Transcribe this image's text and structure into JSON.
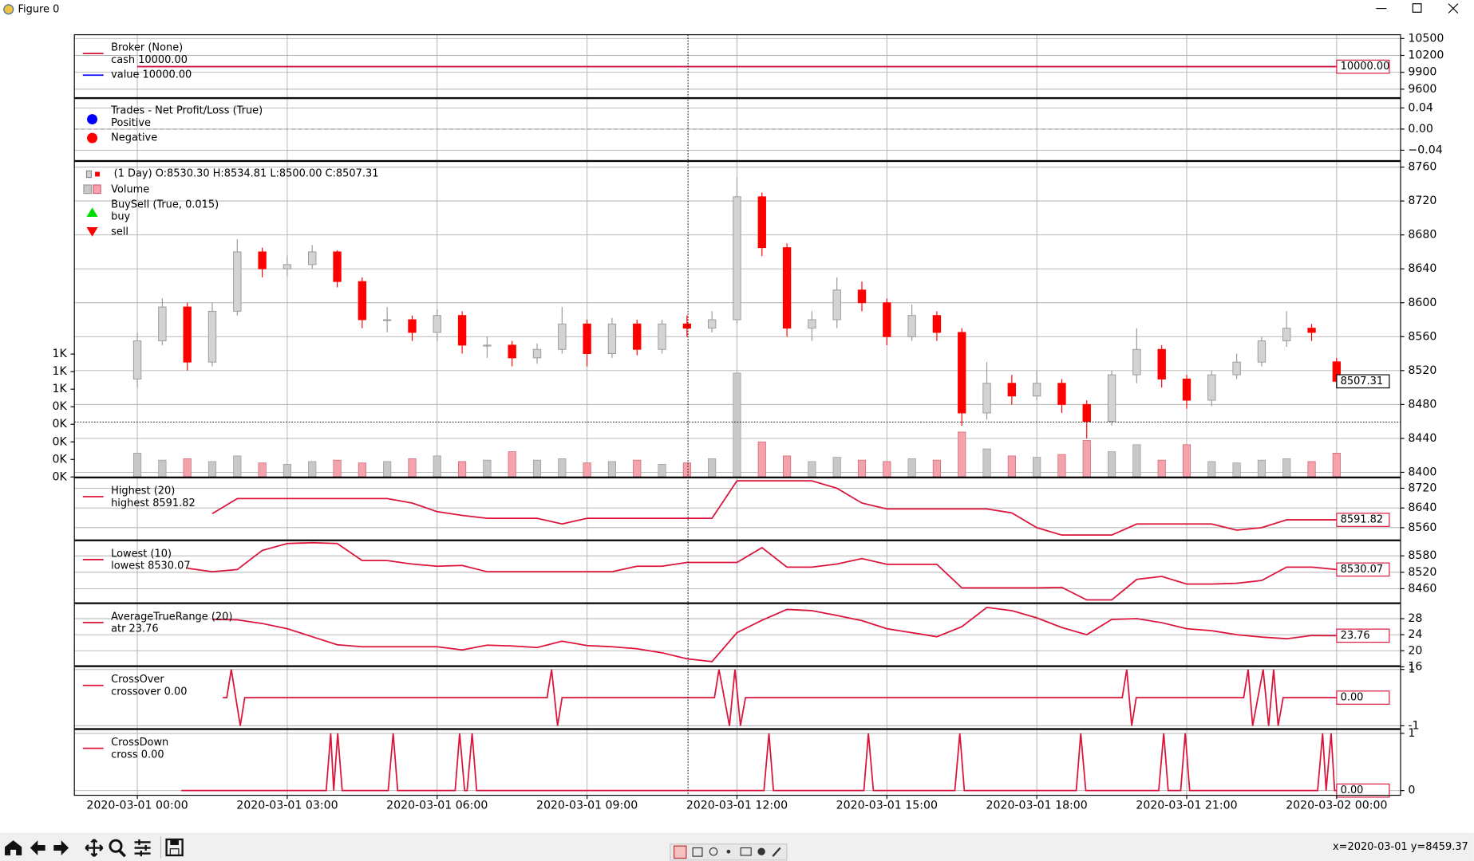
{
  "window": {
    "title": "Figure 0",
    "status": "x=2020-03-01 y=8459.37"
  },
  "chart_data": [
    {
      "type": "line",
      "title": "Broker (None)",
      "x": [
        0,
        24
      ],
      "series": [
        {
          "name": "cash 10000.00",
          "color": "#dc143c",
          "values": [
            10000,
            10000
          ],
          "last_label": "10000.00"
        },
        {
          "name": "value 10000.00",
          "color": "#0000ff",
          "values": [
            10000,
            10000
          ]
        }
      ],
      "ylim": [
        9450,
        10567
      ],
      "yticks": [
        10500,
        10200,
        9900,
        9600
      ],
      "grid": true
    },
    {
      "type": "scatter",
      "title": "Trades - Net Profit/Loss (True)",
      "series": [
        {
          "name": "Positive",
          "color": "#0000ff"
        },
        {
          "name": "Negative",
          "color": "#ff0000"
        }
      ],
      "ylim": [
        -0.0596,
        0.0578
      ],
      "yticks": [
        0.04,
        {
          "value": 0,
          "label": "0.00"
        },
        {
          "value": -0.04,
          "label": "−0.04"
        }
      ],
      "grid": true
    },
    {
      "type": "candlestick",
      "title": "(1 Day) O:8530.30 H:8534.81 L:8500.00 C:8507.31",
      "x": [
        0,
        0.5,
        1,
        1.5,
        2,
        2.5,
        3,
        3.5,
        4,
        4.5,
        5,
        5.5,
        6,
        6.5,
        7,
        7.5,
        8,
        8.5,
        9,
        9.5,
        10,
        10.5,
        11,
        11.5,
        12,
        12.5,
        13,
        13.5,
        14,
        14.5,
        15,
        15.5,
        16,
        16.5,
        17,
        17.5,
        18,
        18.5,
        19,
        19.5,
        20,
        20.5,
        21,
        21.5,
        22,
        22.5,
        23,
        23.5,
        24
      ],
      "open": [
        8510,
        8555,
        8595,
        8530,
        8590,
        8660,
        8640,
        8645,
        8660,
        8625,
        8580,
        8580,
        8565,
        8585,
        8550,
        8550,
        8535,
        8545,
        8575,
        8540,
        8575,
        8545,
        8575,
        8570,
        8580,
        8725,
        8665,
        8570,
        8580,
        8615,
        8600,
        8560,
        8585,
        8565,
        8470,
        8505,
        8490,
        8505,
        8480,
        8460,
        8515,
        8545,
        8510,
        8485,
        8515,
        8530,
        8555,
        8570,
        8530.3
      ],
      "high": [
        8565,
        8605,
        8600,
        8600,
        8675,
        8665,
        8655,
        8668,
        8662,
        8630,
        8595,
        8585,
        8592,
        8590,
        8560,
        8555,
        8552,
        8595,
        8580,
        8582,
        8580,
        8580,
        8585,
        8590,
        8748,
        8730,
        8670,
        8590,
        8630,
        8625,
        8605,
        8598,
        8590,
        8570,
        8530,
        8515,
        8520,
        8510,
        8485,
        8520,
        8570,
        8550,
        8515,
        8520,
        8540,
        8560,
        8590,
        8575,
        8534.81
      ],
      "low": [
        8500,
        8550,
        8520,
        8525,
        8585,
        8630,
        8632,
        8640,
        8618,
        8570,
        8565,
        8555,
        8555,
        8540,
        8535,
        8525,
        8528,
        8540,
        8525,
        8535,
        8538,
        8540,
        8560,
        8565,
        8575,
        8655,
        8560,
        8555,
        8570,
        8590,
        8550,
        8555,
        8555,
        8455,
        8462,
        8480,
        8485,
        8470,
        8440,
        8455,
        8505,
        8500,
        8475,
        8478,
        8510,
        8525,
        8548,
        8555,
        8500.0
      ],
      "close": [
        8555,
        8595,
        8530,
        8590,
        8660,
        8640,
        8645,
        8660,
        8625,
        8580,
        8580,
        8565,
        8585,
        8550,
        8550,
        8535,
        8545,
        8575,
        8540,
        8575,
        8545,
        8575,
        8570,
        8580,
        8725,
        8665,
        8570,
        8580,
        8615,
        8600,
        8560,
        8585,
        8565,
        8470,
        8505,
        8490,
        8505,
        8480,
        8460,
        8515,
        8545,
        8510,
        8485,
        8515,
        8530,
        8555,
        8570,
        8565,
        8507.31
      ],
      "up_color": "#d3d3d3",
      "down_color": "#ff0000",
      "volume": {
        "name": "Volume",
        "up_color": "#c8c8c8",
        "down_color": "#f4a3ad",
        "values": [
          170,
          120,
          130,
          110,
          150,
          100,
          90,
          110,
          120,
          100,
          110,
          130,
          150,
          110,
          120,
          180,
          120,
          130,
          100,
          110,
          120,
          90,
          100,
          130,
          740,
          250,
          150,
          110,
          140,
          120,
          110,
          130,
          120,
          320,
          200,
          150,
          140,
          160,
          260,
          180,
          230,
          120,
          230,
          110,
          100,
          120,
          130,
          110,
          170
        ]
      },
      "markers": {
        "title": "BuySell (True, 0.015)",
        "series": [
          {
            "name": "buy",
            "color": "#00dd00"
          },
          {
            "name": "sell",
            "color": "#ff0000"
          }
        ]
      },
      "ylim": [
        8394.5,
        8766.6
      ],
      "yticks": [
        8400,
        8440,
        8480,
        8520,
        8560,
        8600,
        8640,
        8680,
        8720,
        8760
      ],
      "y2lim": [
        0,
        2246
      ],
      "y2ticks": [
        {
          "value": 0,
          "label": "0K"
        },
        {
          "value": 125,
          "label": "0K"
        },
        {
          "value": 250,
          "label": "0K"
        },
        {
          "value": 375,
          "label": "0K"
        },
        {
          "value": 500,
          "label": "0K"
        },
        {
          "value": 625,
          "label": "1K"
        },
        {
          "value": 750,
          "label": "1K"
        },
        {
          "value": 875,
          "label": "1K"
        }
      ],
      "crosshair": {
        "x": 11.02,
        "y": 8459.37
      },
      "grid": true
    },
    {
      "type": "line",
      "title": "Highest (20)",
      "x": [
        0,
        0.5,
        1,
        1.5,
        2,
        2.5,
        3,
        3.5,
        4,
        4.5,
        5,
        5.5,
        6,
        6.5,
        7,
        7.5,
        8,
        8.5,
        9,
        9.5,
        10,
        10.5,
        11,
        11.5,
        12,
        12.5,
        13,
        13.5,
        14,
        14.5,
        15,
        15.5,
        16,
        16.5,
        17,
        17.5,
        18,
        18.5,
        19,
        19.5,
        20,
        20.5,
        21,
        21.5,
        22,
        22.5,
        23,
        23.5,
        24
      ],
      "series": [
        {
          "name": "highest 8591.82",
          "color": "#dc143c",
          "values": [
            null,
            null,
            null,
            8617,
            8678,
            8678,
            8678,
            8678,
            8678,
            8678,
            8678,
            8660,
            8625,
            8610,
            8598,
            8598,
            8598,
            8575,
            8598,
            8598,
            8598,
            8598,
            8598,
            8598,
            8750,
            8750,
            8750,
            8750,
            8720,
            8660,
            8636,
            8636,
            8636,
            8636,
            8636,
            8620,
            8560,
            8530,
            8530,
            8530,
            8575,
            8575,
            8575,
            8575,
            8550,
            8560,
            8591.82,
            8591.82,
            8591.82
          ]
        }
      ],
      "ylim": [
        8510.5,
        8761.9
      ],
      "yticks": [
        8720,
        8640,
        8560
      ],
      "grid": true
    },
    {
      "type": "line",
      "title": "Lowest (10)",
      "x": [
        0,
        0.5,
        1,
        1.5,
        2,
        2.5,
        3,
        3.5,
        4,
        4.5,
        5,
        5.5,
        6,
        6.5,
        7,
        7.5,
        8,
        8.5,
        9,
        9.5,
        10,
        10.5,
        11,
        11.5,
        12,
        12.5,
        13,
        13.5,
        14,
        14.5,
        15,
        15.5,
        16,
        16.5,
        17,
        17.5,
        18,
        18.5,
        19,
        19.5,
        20,
        20.5,
        21,
        21.5,
        22,
        22.5,
        23,
        23.5,
        24
      ],
      "series": [
        {
          "name": "lowest 8530.07",
          "color": "#dc143c",
          "values": [
            null,
            null,
            8535,
            8522,
            8530,
            8600,
            8625,
            8628,
            8625,
            8563,
            8563,
            8550,
            8542,
            8545,
            8522,
            8522,
            8522,
            8522,
            8522,
            8522,
            8542,
            8542,
            8556,
            8556,
            8556,
            8610,
            8539,
            8539,
            8550,
            8570,
            8549,
            8549,
            8549,
            8463,
            8463,
            8463,
            8463,
            8465,
            8419,
            8419,
            8494,
            8505,
            8477,
            8477,
            8480,
            8490,
            8539,
            8539,
            8530.07
          ]
        }
      ],
      "ylim": [
        8408.6,
        8634.9
      ],
      "yticks": [
        8580,
        8520,
        8460
      ],
      "grid": true
    },
    {
      "type": "line",
      "title": "AverageTrueRange (20)",
      "x": [
        0,
        0.5,
        1,
        1.5,
        2,
        2.5,
        3,
        3.5,
        4,
        4.5,
        5,
        5.5,
        6,
        6.5,
        7,
        7.5,
        8,
        8.5,
        9,
        9.5,
        10,
        10.5,
        11,
        11.5,
        12,
        12.5,
        13,
        13.5,
        14,
        14.5,
        15,
        15.5,
        16,
        16.5,
        17,
        17.5,
        18,
        18.5,
        19,
        19.5,
        20,
        20.5,
        21,
        21.5,
        22,
        22.5,
        23,
        23.5,
        24
      ],
      "series": [
        {
          "name": "atr 23.76",
          "color": "#dc143c",
          "values": [
            null,
            null,
            null,
            27.8,
            27.7,
            26.8,
            25.5,
            23.5,
            21.5,
            21.0,
            21.0,
            21.0,
            21.0,
            20.2,
            21.4,
            21.2,
            20.8,
            22.4,
            21.3,
            21.0,
            20.5,
            19.5,
            18.0,
            17.3,
            24.5,
            27.6,
            30.3,
            30.0,
            28.8,
            27.5,
            25.5,
            24.5,
            23.5,
            26.0,
            30.8,
            30.0,
            28.2,
            25.8,
            24.0,
            27.8,
            28.0,
            27.0,
            25.5,
            25.0,
            24.0,
            23.4,
            23.0,
            23.8,
            23.76
          ]
        }
      ],
      "ylim": [
        16.28,
        31.72
      ],
      "yticks": [
        28,
        24,
        20,
        16
      ],
      "grid": true
    },
    {
      "type": "line",
      "title": "CrossOver",
      "x": [
        1.71,
        1.79,
        1.88,
        2.06,
        2.15,
        8.2,
        8.29,
        8.41,
        8.5,
        11.55,
        11.64,
        11.85,
        11.96,
        12.07,
        12.17,
        19.71,
        19.8,
        19.9,
        19.99,
        22.14,
        22.23,
        22.32,
        22.53,
        22.64,
        22.74,
        22.83,
        22.93,
        24
      ],
      "series": [
        {
          "name": "crossover 0.00",
          "color": "#dc143c",
          "values": [
            0,
            0,
            1,
            -1,
            0,
            0,
            1,
            -1,
            0,
            0,
            1,
            -1,
            1,
            -1,
            0,
            0,
            1,
            -1,
            0,
            0,
            1,
            -1,
            1,
            -1,
            1,
            -1,
            0,
            0
          ],
          "last_label": "0.00"
        }
      ],
      "ylim": [
        -1.1,
        1.1
      ],
      "yticks": [
        -1,
        1
      ],
      "grid": true
    },
    {
      "type": "line",
      "title": "CrossDown",
      "x": [
        0.88,
        3.78,
        3.87,
        3.93,
        4.01,
        4.1,
        5.02,
        5.12,
        5.21,
        6.36,
        6.45,
        6.55,
        6.6,
        6.7,
        6.79,
        12.54,
        12.64,
        12.73,
        14.54,
        14.63,
        14.73,
        16.36,
        16.46,
        16.55,
        18.79,
        18.88,
        18.98,
        20.44,
        20.54,
        20.63,
        20.88,
        20.97,
        21.06,
        23.62,
        23.72,
        23.79,
        23.89,
        23.96,
        24
      ],
      "series": [
        {
          "name": "cross 0.00",
          "color": "#dc143c",
          "values": [
            0,
            0,
            1,
            0,
            1,
            0,
            0,
            1,
            0,
            0,
            1,
            0,
            0,
            1,
            0,
            0,
            1,
            0,
            0,
            1,
            0,
            0,
            1,
            0,
            0,
            1,
            0,
            0,
            1,
            0,
            0,
            1,
            0,
            0,
            1,
            0,
            1,
            0,
            0
          ],
          "last_label": "0.00"
        }
      ],
      "ylim": [
        -0.082,
        1.066
      ],
      "yticks": [
        0,
        1
      ],
      "grid": true,
      "xlim": [
        -1.26,
        25.28
      ],
      "xticks": [
        {
          "value": 0,
          "label": "2020-03-01 00:00"
        },
        {
          "value": 3,
          "label": "2020-03-01 03:00"
        },
        {
          "value": 6,
          "label": "2020-03-01 06:00"
        },
        {
          "value": 9,
          "label": "2020-03-01 09:00"
        },
        {
          "value": 12,
          "label": "2020-03-01 12:00"
        },
        {
          "value": 15,
          "label": "2020-03-01 15:00"
        },
        {
          "value": 18,
          "label": "2020-03-01 18:00"
        },
        {
          "value": 21,
          "label": "2020-03-01 21:00"
        },
        {
          "value": 24,
          "label": "2020-03-02 00:00"
        }
      ]
    }
  ]
}
